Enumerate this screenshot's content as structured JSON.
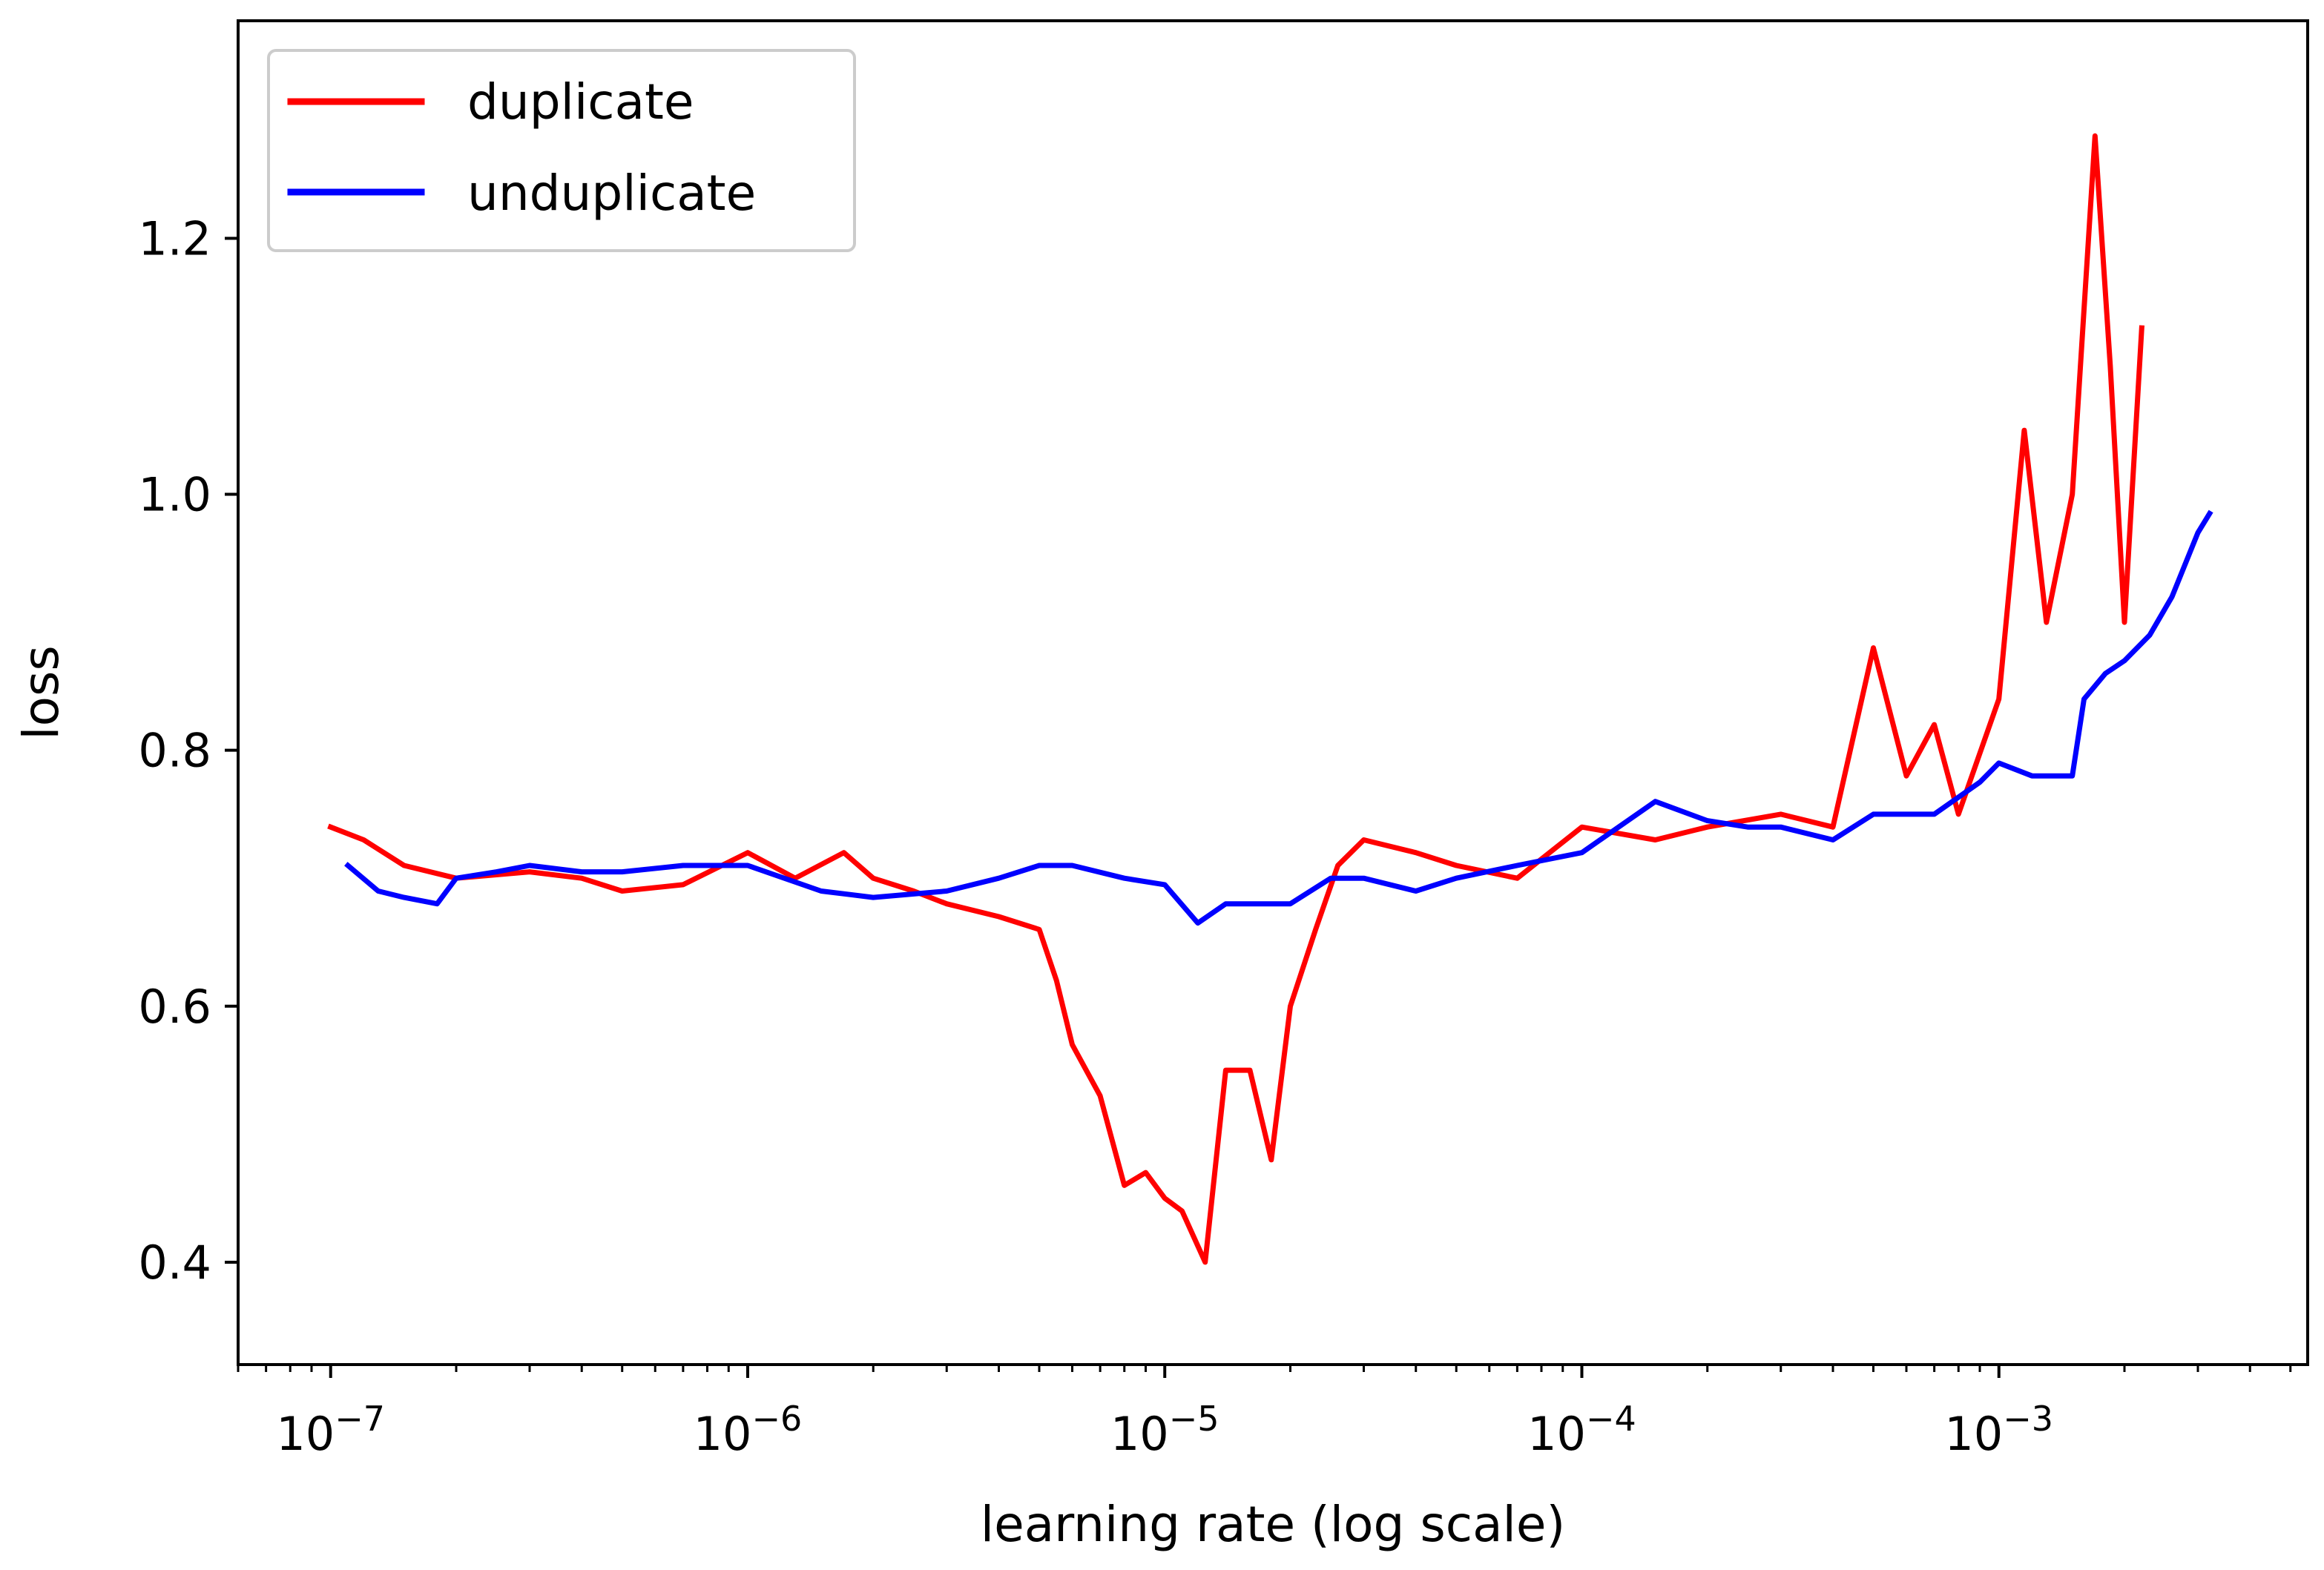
{
  "chart_data": {
    "type": "line",
    "title": "",
    "xlabel": "learning rate (log scale)",
    "ylabel": "loss",
    "xscale": "log",
    "xlim": [
      6e-08,
      0.0055
    ],
    "ylim": [
      0.32,
      1.37
    ],
    "grid": false,
    "legend_position": "top-left",
    "x_major_ticks": [
      {
        "value": 1e-07,
        "base": "10",
        "exp": "−7"
      },
      {
        "value": 1e-06,
        "base": "10",
        "exp": "−6"
      },
      {
        "value": 1e-05,
        "base": "10",
        "exp": "−5"
      },
      {
        "value": 0.0001,
        "base": "10",
        "exp": "−4"
      },
      {
        "value": 0.001,
        "base": "10",
        "exp": "−3"
      }
    ],
    "y_ticks": [
      {
        "value": 0.4,
        "label": "0.4"
      },
      {
        "value": 0.6,
        "label": "0.6"
      },
      {
        "value": 0.8,
        "label": "0.8"
      },
      {
        "value": 1.0,
        "label": "1.0"
      },
      {
        "value": 1.2,
        "label": "1.2"
      }
    ],
    "series": [
      {
        "name": "duplicate",
        "color": "#ff0000",
        "x": [
          1e-07,
          1.2e-07,
          1.5e-07,
          2e-07,
          3e-07,
          4e-07,
          5e-07,
          7e-07,
          1e-06,
          1.3e-06,
          1.7e-06,
          2e-06,
          2.5e-06,
          3e-06,
          4e-06,
          5e-06,
          5.5e-06,
          6e-06,
          7e-06,
          8e-06,
          9e-06,
          1e-05,
          1.1e-05,
          1.25e-05,
          1.4e-05,
          1.6e-05,
          1.8e-05,
          2e-05,
          2.3e-05,
          2.6e-05,
          3e-05,
          4e-05,
          5e-05,
          7e-05,
          0.0001,
          0.00015,
          0.0002,
          0.0003,
          0.0004,
          0.0005,
          0.0006,
          0.0007,
          0.0008,
          0.001,
          0.00115,
          0.0013,
          0.0015,
          0.0017,
          0.00185,
          0.002,
          0.0022
        ],
        "y": [
          0.74,
          0.73,
          0.71,
          0.7,
          0.705,
          0.7,
          0.69,
          0.695,
          0.72,
          0.7,
          0.72,
          0.7,
          0.69,
          0.68,
          0.67,
          0.66,
          0.62,
          0.57,
          0.53,
          0.46,
          0.47,
          0.45,
          0.44,
          0.4,
          0.55,
          0.55,
          0.48,
          0.6,
          0.66,
          0.71,
          0.73,
          0.72,
          0.71,
          0.7,
          0.74,
          0.73,
          0.74,
          0.75,
          0.74,
          0.88,
          0.78,
          0.82,
          0.75,
          0.84,
          1.05,
          0.9,
          1.0,
          1.28,
          1.1,
          0.9,
          1.13
        ]
      },
      {
        "name": "unduplicate",
        "color": "#0000ff",
        "x": [
          1.1e-07,
          1.3e-07,
          1.5e-07,
          1.8e-07,
          2e-07,
          2.5e-07,
          3e-07,
          4e-07,
          5e-07,
          7e-07,
          1e-06,
          1.5e-06,
          2e-06,
          3e-06,
          4e-06,
          5e-06,
          6e-06,
          8e-06,
          1e-05,
          1.2e-05,
          1.4e-05,
          1.7e-05,
          2e-05,
          2.5e-05,
          3e-05,
          4e-05,
          5e-05,
          7e-05,
          0.0001,
          0.00015,
          0.0002,
          0.00025,
          0.0003,
          0.0004,
          0.0005,
          0.0007,
          0.0009,
          0.001,
          0.0012,
          0.0015,
          0.0016,
          0.0018,
          0.002,
          0.0023,
          0.0026,
          0.003,
          0.0032
        ],
        "y": [
          0.71,
          0.69,
          0.685,
          0.68,
          0.7,
          0.705,
          0.71,
          0.705,
          0.705,
          0.71,
          0.71,
          0.69,
          0.685,
          0.69,
          0.7,
          0.71,
          0.71,
          0.7,
          0.695,
          0.665,
          0.68,
          0.68,
          0.68,
          0.7,
          0.7,
          0.69,
          0.7,
          0.71,
          0.72,
          0.76,
          0.745,
          0.74,
          0.74,
          0.73,
          0.75,
          0.75,
          0.775,
          0.79,
          0.78,
          0.78,
          0.84,
          0.86,
          0.87,
          0.89,
          0.92,
          0.97,
          0.985
        ]
      }
    ]
  }
}
